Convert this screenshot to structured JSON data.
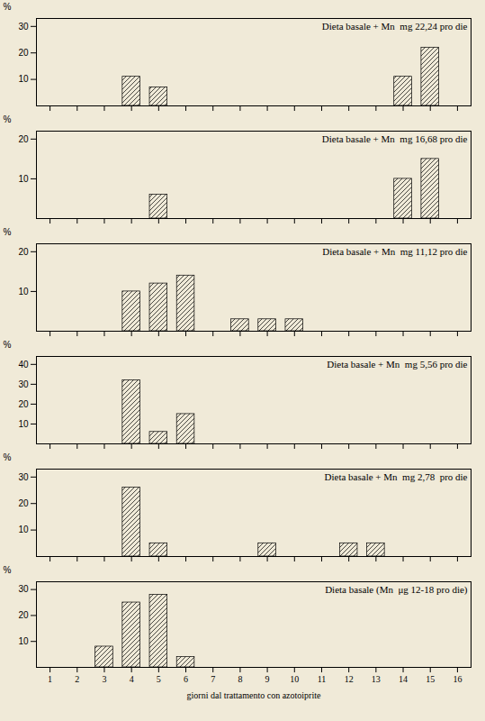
{
  "chart_data": [
    {
      "type": "bar",
      "title": "Dieta basale + Mn  mg 22,24 pro die",
      "ylabel": "%",
      "x": [
        4,
        5,
        14,
        15
      ],
      "values": [
        11,
        7,
        11,
        22
      ],
      "xlim": [
        0.5,
        16.5
      ],
      "xticks": [
        1,
        2,
        3,
        4,
        5,
        6,
        7,
        8,
        9,
        10,
        11,
        12,
        13,
        14,
        15,
        16
      ],
      "ylim": [
        0,
        33
      ],
      "yticks": [
        10,
        20,
        30
      ],
      "tick_labels": "y",
      "color": "#f0ead8"
    },
    {
      "type": "bar",
      "title": "Dieta basale + Mn  mg 16,68 pro die",
      "ylabel": "%",
      "x": [
        5,
        14,
        15
      ],
      "values": [
        6,
        10,
        15
      ],
      "xlim": [
        0.5,
        16.5
      ],
      "xticks": [
        1,
        2,
        3,
        4,
        5,
        6,
        7,
        8,
        9,
        10,
        11,
        12,
        13,
        14,
        15,
        16
      ],
      "ylim": [
        0,
        22
      ],
      "yticks": [
        10,
        20
      ],
      "tick_labels": "y",
      "color": "#f0ead8"
    },
    {
      "type": "bar",
      "title": "Dieta basale + Mn  mg 11,12 pro die",
      "ylabel": "%",
      "x": [
        4,
        5,
        6,
        8,
        9,
        10
      ],
      "values": [
        10,
        12,
        14,
        3,
        3,
        3
      ],
      "xlim": [
        0.5,
        16.5
      ],
      "xticks": [
        1,
        2,
        3,
        4,
        5,
        6,
        7,
        8,
        9,
        10,
        11,
        12,
        13,
        14,
        15,
        16
      ],
      "ylim": [
        0,
        22
      ],
      "yticks": [
        10,
        20
      ],
      "tick_labels": "y",
      "color": "#f0ead8"
    },
    {
      "type": "bar",
      "title": "Dieta basale + Mn  mg 5,56 pro die",
      "ylabel": "%",
      "x": [
        4,
        5,
        6
      ],
      "values": [
        32,
        6,
        15
      ],
      "xlim": [
        0.5,
        16.5
      ],
      "xticks": [
        1,
        2,
        3,
        4,
        5,
        6,
        7,
        8,
        9,
        10,
        11,
        12,
        13,
        14,
        15,
        16
      ],
      "ylim": [
        0,
        44
      ],
      "yticks": [
        10,
        20,
        30,
        40
      ],
      "tick_labels": "y",
      "color": "#f0ead8"
    },
    {
      "type": "bar",
      "title": "Dieta basale + Mn  mg 2,78  pro die",
      "ylabel": "%",
      "x": [
        4,
        5,
        9,
        12,
        13
      ],
      "values": [
        26,
        5,
        5,
        5,
        5
      ],
      "xlim": [
        0.5,
        16.5
      ],
      "xticks": [
        1,
        2,
        3,
        4,
        5,
        6,
        7,
        8,
        9,
        10,
        11,
        12,
        13,
        14,
        15,
        16
      ],
      "ylim": [
        0,
        33
      ],
      "yticks": [
        10,
        20,
        30
      ],
      "tick_labels": "y",
      "color": "#f0ead8"
    },
    {
      "type": "bar",
      "title": "Dieta basale (Mn  μg 12-18 pro die)",
      "ylabel": "%",
      "xlabel": "giorni dal trattamento con azotoiprite",
      "x": [
        3,
        4,
        5,
        6
      ],
      "values": [
        8,
        25,
        28,
        4
      ],
      "xlim": [
        0.5,
        16.5
      ],
      "xticks": [
        1,
        2,
        3,
        4,
        5,
        6,
        7,
        8,
        9,
        10,
        11,
        12,
        13,
        14,
        15,
        16
      ],
      "ylim": [
        0,
        33
      ],
      "yticks": [
        10,
        20,
        30
      ],
      "color": "#f0ead8"
    }
  ]
}
